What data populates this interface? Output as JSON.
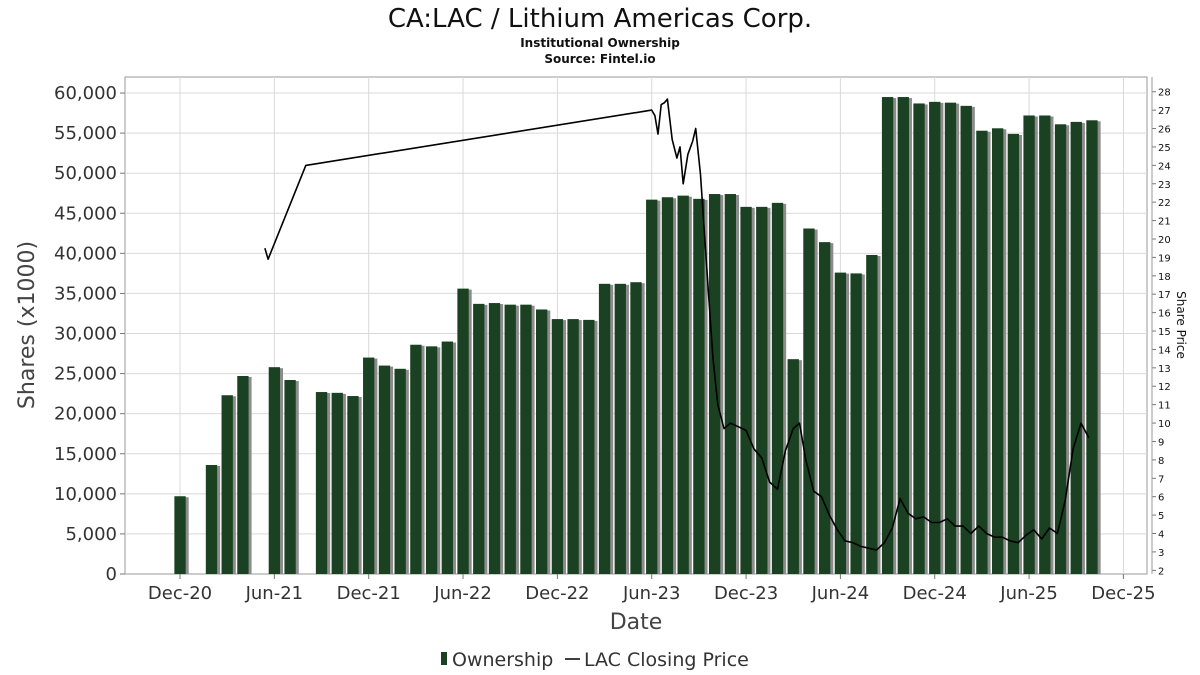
{
  "title": "CA:LAC / Lithium Americas Corp.",
  "subtitle": "Institutional Ownership",
  "source": "Source: Fintel.io",
  "colors": {
    "bar": "#1a4121",
    "bar_shadow": "#8c8c8c",
    "line": "#000000",
    "grid": "#d9d9d9"
  },
  "chart_data": {
    "type": "bar",
    "xlabel": "Date",
    "ylabel": "Shares (x1000)",
    "y2label": "Share Price",
    "ylim": [
      0,
      62000
    ],
    "y2lim": [
      1.8,
      28.8
    ],
    "yticks": [
      0,
      5000,
      10000,
      15000,
      20000,
      25000,
      30000,
      35000,
      40000,
      45000,
      50000,
      55000,
      60000
    ],
    "ytick_labels": [
      "0",
      "5,000",
      "10,000",
      "15,000",
      "20,000",
      "25,000",
      "30,000",
      "35,000",
      "40,000",
      "45,000",
      "50,000",
      "55,000",
      "60,000"
    ],
    "y2ticks": [
      2,
      3,
      4,
      5,
      6,
      7,
      8,
      9,
      10,
      11,
      12,
      13,
      14,
      15,
      16,
      17,
      18,
      19,
      20,
      21,
      22,
      23,
      24,
      25,
      26,
      27,
      28
    ],
    "y2tick_labels": [
      "2",
      "3",
      "4",
      "5",
      "6",
      "7",
      "8",
      "9",
      "10",
      "11",
      "12",
      "13",
      "14",
      "15",
      "16",
      "17",
      "18",
      "19",
      "20",
      "21",
      "22",
      "23",
      "24",
      "25",
      "26",
      "27",
      "28"
    ],
    "xlim": [
      -3.5,
      61.5
    ],
    "xticks": [
      0,
      6,
      12,
      18,
      24,
      30,
      36,
      42,
      48,
      54,
      60
    ],
    "xtick_labels": [
      "Dec-20",
      "Jun-21",
      "Dec-21",
      "Jun-22",
      "Dec-22",
      "Jun-23",
      "Dec-23",
      "Jun-24",
      "Dec-24",
      "Jun-25",
      "Dec-25"
    ],
    "series": [
      {
        "name": "Ownership",
        "type": "bar",
        "x": [
          0,
          2,
          3,
          4,
          6,
          7,
          9,
          10,
          11,
          12,
          13,
          14,
          15,
          16,
          17,
          18,
          19,
          20,
          21,
          22,
          23,
          24,
          25,
          26,
          27,
          28,
          29,
          30,
          31,
          32,
          33,
          34,
          35,
          36,
          37,
          38,
          39,
          40,
          41,
          42,
          43,
          44,
          45,
          46,
          47,
          48,
          49,
          50,
          51,
          52,
          53,
          54,
          55,
          56,
          57,
          58
        ],
        "values": [
          9700,
          13600,
          22300,
          24700,
          25800,
          24200,
          22700,
          22600,
          22200,
          27000,
          26000,
          25600,
          28600,
          28400,
          29000,
          35600,
          33700,
          33800,
          33600,
          33600,
          33000,
          31800,
          31800,
          31700,
          36200,
          36200,
          36400,
          46700,
          47000,
          47200,
          46800,
          47400,
          47400,
          45800,
          45800,
          46300,
          26800,
          43100,
          41400,
          37600,
          37500,
          39800,
          59500,
          59500,
          58700,
          58900,
          58800,
          58400,
          55300,
          55600,
          54900,
          57200,
          57200,
          56100,
          56400,
          56600
        ]
      },
      {
        "name": "LAC Closing Price",
        "type": "line",
        "x": [
          5.4,
          5.6,
          8.0,
          30.0,
          30.2,
          30.4,
          30.6,
          30.8,
          31.0,
          31.3,
          31.6,
          31.8,
          32.0,
          32.3,
          32.6,
          32.8,
          33.1,
          33.3,
          33.6,
          33.9,
          34.2,
          34.6,
          35.0,
          35.5,
          36.0,
          36.5,
          37.0,
          37.5,
          38.0,
          38.5,
          39.0,
          39.4,
          39.8,
          40.3,
          40.8,
          41.3,
          41.8,
          42.3,
          42.8,
          43.3,
          43.8,
          44.3,
          44.8,
          45.3,
          45.8,
          46.3,
          46.8,
          47.3,
          47.8,
          48.3,
          48.8,
          49.3,
          49.8,
          50.3,
          50.8,
          51.3,
          51.8,
          52.3,
          52.8,
          53.3,
          53.8,
          54.3,
          54.8,
          55.3,
          55.8,
          56.3,
          56.8,
          57.3,
          57.8
        ],
        "values": [
          19.5,
          18.9,
          24.0,
          27.0,
          26.7,
          25.7,
          27.3,
          27.4,
          27.6,
          25.4,
          24.4,
          25.0,
          23.0,
          24.6,
          25.3,
          26.0,
          23.5,
          21.0,
          17.2,
          13.5,
          11.0,
          9.7,
          10.0,
          9.8,
          9.6,
          8.6,
          8.1,
          6.8,
          6.4,
          8.5,
          9.7,
          10.0,
          8.0,
          6.3,
          6.0,
          5.0,
          4.2,
          3.6,
          3.5,
          3.3,
          3.2,
          3.1,
          3.5,
          4.3,
          5.9,
          5.1,
          4.8,
          4.9,
          4.6,
          4.6,
          4.8,
          4.4,
          4.4,
          4.0,
          4.4,
          4.0,
          3.8,
          3.8,
          3.6,
          3.5,
          3.9,
          4.2,
          3.7,
          4.3,
          4.0,
          5.8,
          8.6,
          10.0,
          9.2
        ]
      }
    ],
    "legend": [
      "Ownership",
      "LAC Closing Price"
    ],
    "legend_position": "bottom-center",
    "grid": true
  }
}
